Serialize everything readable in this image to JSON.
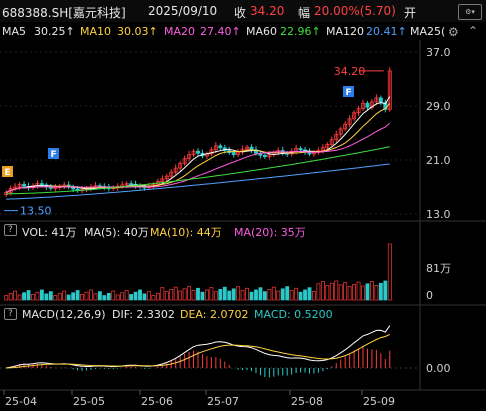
{
  "header": {
    "symbol": "688388.SH[嘉元科技]",
    "date": "2025/09/10",
    "close_label": "收",
    "close_value": "34.20",
    "change_label": "幅",
    "change_value": "20.00%(5.70)",
    "open_label": "开",
    "settings_icon": "settings-icon"
  },
  "ma_bar": {
    "ma5_label": "MA5",
    "ma5_value": "30.25↑",
    "ma10_label": "MA10",
    "ma10_value": "30.03↑",
    "ma20_label": "MA20",
    "ma20_value": "27.40↑",
    "ma60_label": "MA60",
    "ma60_value": "22.96↑",
    "ma120_label": "MA120",
    "ma120_value": "20.41↑",
    "ma250_label": "MA25("
  },
  "price_chart": {
    "y_ticks": [
      "37.0",
      "29.0",
      "21.0",
      "13.0"
    ],
    "high_annotation": "34.20",
    "low_annotation": "13.50",
    "marker_f": "F",
    "marker_e": "E"
  },
  "volume_bar": {
    "help": "?",
    "label": "VOL: 41万",
    "ma5": "MA(5): 40万",
    "ma10": "MA(10): 44万",
    "ma20": "MA(20): 35万",
    "y_ticks": [
      "81万",
      "0"
    ]
  },
  "macd_bar": {
    "help": "?",
    "label": "MACD(12,26,9)",
    "dif": "DIF: 2.3302",
    "dea": "DEA: 2.0702",
    "macd": "MACD: 0.5200",
    "y_ticks": [
      "0.00"
    ]
  },
  "x_axis": [
    "25-04",
    "25-05",
    "25-06",
    "25-07",
    "25-08",
    "25-09"
  ],
  "colors": {
    "up": "#ff3b3b",
    "down": "#2bc9c9",
    "ma5": "#ffffff",
    "ma10": "#ffd23f",
    "ma20": "#ff5ce1",
    "ma60": "#3ee03e",
    "ma120": "#4fa3ff",
    "accent_red": "#ff4040"
  },
  "chart_data": {
    "type": "candlestick",
    "x_range": [
      "2025-04-01",
      "2025-09-10"
    ],
    "ylim": [
      13.0,
      37.0
    ],
    "closes": [
      16.2,
      16.8,
      17.0,
      17.4,
      17.1,
      16.9,
      17.2,
      17.5,
      17.3,
      17.0,
      16.8,
      16.9,
      17.1,
      17.3,
      17.0,
      16.7,
      16.5,
      16.6,
      16.8,
      17.0,
      17.2,
      17.1,
      16.9,
      16.8,
      16.9,
      17.1,
      17.3,
      17.5,
      17.4,
      17.2,
      17.0,
      16.9,
      17.1,
      17.4,
      17.8,
      18.2,
      18.6,
      19.2,
      19.8,
      20.5,
      21.2,
      21.8,
      22.3,
      22.0,
      21.6,
      21.9,
      22.5,
      23.1,
      22.8,
      22.4,
      22.1,
      21.8,
      22.2,
      22.6,
      22.9,
      22.5,
      22.0,
      21.7,
      21.5,
      21.8,
      22.1,
      22.4,
      22.0,
      21.9,
      22.3,
      22.7,
      22.5,
      22.2,
      21.9,
      22.1,
      22.4,
      22.8,
      23.3,
      24.0,
      24.8,
      25.6,
      26.3,
      27.1,
      28.0,
      28.6,
      29.4,
      28.8,
      29.6,
      30.2,
      29.5,
      28.5,
      34.2
    ],
    "ma_latest": {
      "MA5": 30.25,
      "MA10": 30.03,
      "MA20": 27.4,
      "MA60": 22.96,
      "MA120": 20.41
    },
    "high": 34.2,
    "low": 13.5,
    "volume": {
      "latest": "41万",
      "ma5": "40万",
      "ma10": "44万",
      "ma20": "35万"
    },
    "macd": {
      "dif": 2.3302,
      "dea": 2.0702,
      "macd": 0.52
    }
  }
}
